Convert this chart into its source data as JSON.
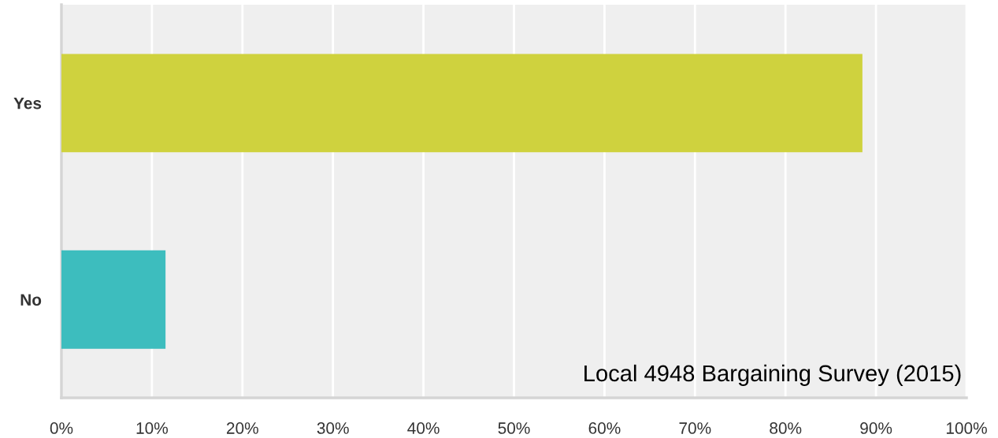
{
  "chart_data": {
    "type": "bar",
    "orientation": "horizontal",
    "categories": [
      "Yes",
      "No"
    ],
    "values": [
      88.5,
      11.5
    ],
    "colors": [
      "#cfd23e",
      "#3dbdbe"
    ],
    "xlim": [
      0,
      100
    ],
    "xticks": [
      {
        "value": 0,
        "label": "0%"
      },
      {
        "value": 10,
        "label": "10%"
      },
      {
        "value": 20,
        "label": "20%"
      },
      {
        "value": 30,
        "label": "30%"
      },
      {
        "value": 40,
        "label": "40%"
      },
      {
        "value": 50,
        "label": "50%"
      },
      {
        "value": 60,
        "label": "60%"
      },
      {
        "value": 70,
        "label": "70%"
      },
      {
        "value": 80,
        "label": "80%"
      },
      {
        "value": 90,
        "label": "90%"
      },
      {
        "value": 100,
        "label": "100%"
      }
    ],
    "grid": "x",
    "legend": false,
    "annotations": [
      "Local 4948 Bargaining Survey (2015)"
    ]
  }
}
